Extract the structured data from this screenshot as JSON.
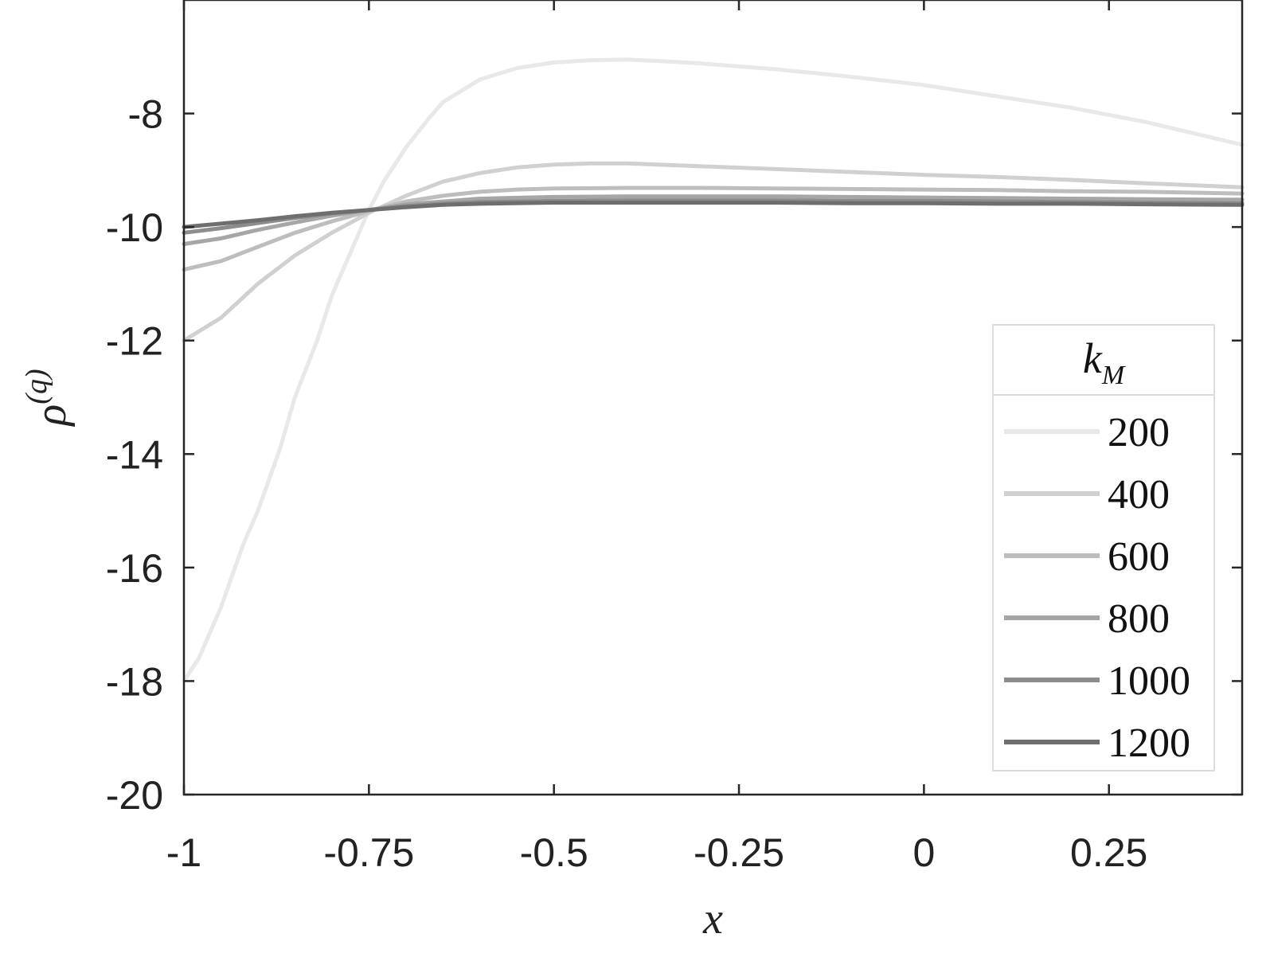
{
  "chart_data": {
    "type": "line",
    "xlabel": "x",
    "ylabel": "ρ",
    "ylabel_superscript": "(q)",
    "xlim": [
      -1,
      0.43
    ],
    "ylim": [
      -20,
      -6
    ],
    "xticks": [
      -1,
      -0.75,
      -0.5,
      -0.25,
      0,
      0.25
    ],
    "xtick_labels": [
      "-1",
      "-0.75",
      "-0.5",
      "-0.25",
      "0",
      "0.25"
    ],
    "yticks": [
      -20,
      -18,
      -16,
      -14,
      -12,
      -10,
      -8
    ],
    "ytick_labels": [
      "-20",
      "-18",
      "-16",
      "-14",
      "-12",
      "-10",
      "-8"
    ],
    "grid": false,
    "legend": {
      "title": "k",
      "title_subscript": "M",
      "placement": "lower-right"
    },
    "series": [
      {
        "name": "200",
        "color": "#e8e8e8",
        "x": [
          -1.0,
          -0.98,
          -0.95,
          -0.92,
          -0.9,
          -0.87,
          -0.85,
          -0.82,
          -0.8,
          -0.77,
          -0.75,
          -0.73,
          -0.7,
          -0.67,
          -0.65,
          -0.6,
          -0.55,
          -0.5,
          -0.45,
          -0.4,
          -0.35,
          -0.3,
          -0.2,
          -0.1,
          0.0,
          0.1,
          0.2,
          0.3,
          0.43
        ],
        "values": [
          -18.0,
          -17.6,
          -16.7,
          -15.6,
          -15.0,
          -13.9,
          -13.0,
          -12.0,
          -11.2,
          -10.3,
          -9.7,
          -9.2,
          -8.6,
          -8.1,
          -7.8,
          -7.4,
          -7.2,
          -7.1,
          -7.06,
          -7.05,
          -7.08,
          -7.12,
          -7.22,
          -7.35,
          -7.5,
          -7.7,
          -7.9,
          -8.15,
          -8.55
        ]
      },
      {
        "name": "400",
        "color": "#d0d0d0",
        "x": [
          -1.0,
          -0.95,
          -0.9,
          -0.85,
          -0.8,
          -0.75,
          -0.7,
          -0.65,
          -0.6,
          -0.55,
          -0.5,
          -0.45,
          -0.4,
          -0.3,
          -0.2,
          -0.1,
          0.0,
          0.1,
          0.2,
          0.3,
          0.43
        ],
        "values": [
          -12.0,
          -11.6,
          -11.0,
          -10.5,
          -10.1,
          -9.75,
          -9.45,
          -9.2,
          -9.05,
          -8.95,
          -8.9,
          -8.88,
          -8.88,
          -8.93,
          -8.98,
          -9.03,
          -9.08,
          -9.12,
          -9.17,
          -9.23,
          -9.3
        ]
      },
      {
        "name": "600",
        "color": "#bdbdbd",
        "x": [
          -1.0,
          -0.95,
          -0.9,
          -0.85,
          -0.8,
          -0.75,
          -0.7,
          -0.65,
          -0.6,
          -0.55,
          -0.5,
          -0.4,
          -0.3,
          -0.2,
          -0.1,
          0.0,
          0.1,
          0.2,
          0.3,
          0.43
        ],
        "values": [
          -10.75,
          -10.6,
          -10.35,
          -10.1,
          -9.9,
          -9.72,
          -9.55,
          -9.45,
          -9.38,
          -9.34,
          -9.32,
          -9.31,
          -9.31,
          -9.32,
          -9.33,
          -9.34,
          -9.35,
          -9.37,
          -9.38,
          -9.41
        ]
      },
      {
        "name": "800",
        "color": "#a6a6a6",
        "x": [
          -1.0,
          -0.95,
          -0.9,
          -0.85,
          -0.8,
          -0.75,
          -0.7,
          -0.65,
          -0.6,
          -0.5,
          -0.4,
          -0.3,
          -0.2,
          -0.1,
          0.0,
          0.1,
          0.2,
          0.3,
          0.43
        ],
        "values": [
          -10.3,
          -10.2,
          -10.05,
          -9.92,
          -9.8,
          -9.7,
          -9.6,
          -9.55,
          -9.5,
          -9.47,
          -9.46,
          -9.46,
          -9.46,
          -9.47,
          -9.48,
          -9.49,
          -9.5,
          -9.51,
          -9.52
        ]
      },
      {
        "name": "1000",
        "color": "#8c8c8c",
        "x": [
          -1.0,
          -0.95,
          -0.9,
          -0.85,
          -0.8,
          -0.75,
          -0.7,
          -0.65,
          -0.6,
          -0.5,
          -0.4,
          -0.3,
          -0.2,
          -0.1,
          0.0,
          0.1,
          0.2,
          0.3,
          0.43
        ],
        "values": [
          -10.1,
          -10.02,
          -9.93,
          -9.84,
          -9.76,
          -9.7,
          -9.63,
          -9.59,
          -9.56,
          -9.54,
          -9.53,
          -9.53,
          -9.53,
          -9.54,
          -9.54,
          -9.55,
          -9.56,
          -9.57,
          -9.58
        ]
      },
      {
        "name": "1200",
        "color": "#6e6e6e",
        "x": [
          -1.0,
          -0.95,
          -0.9,
          -0.85,
          -0.8,
          -0.75,
          -0.7,
          -0.65,
          -0.6,
          -0.5,
          -0.4,
          -0.3,
          -0.2,
          -0.1,
          0.0,
          0.1,
          0.2,
          0.3,
          0.43
        ],
        "values": [
          -10.0,
          -9.94,
          -9.88,
          -9.81,
          -9.75,
          -9.7,
          -9.65,
          -9.61,
          -9.59,
          -9.57,
          -9.57,
          -9.57,
          -9.57,
          -9.58,
          -9.58,
          -9.59,
          -9.59,
          -9.6,
          -9.61
        ]
      }
    ]
  }
}
